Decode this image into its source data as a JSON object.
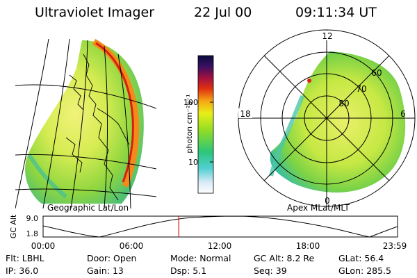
{
  "header": {
    "instrument": "Ultraviolet Imager",
    "date": "22 Jul 00",
    "time": "09:11:34 UT"
  },
  "colorbar": {
    "unit_label": "photon cm⁻²s⁻¹",
    "tick_labels": [
      "100",
      "10"
    ]
  },
  "panels": {
    "left_label": "Geographic Lat/Lon",
    "right_label": "Apex MLat/MLT"
  },
  "polar_plot": {
    "mlt_labels": [
      "12",
      "18",
      "6",
      "0"
    ],
    "mlat_labels": [
      "60",
      "70",
      "80"
    ]
  },
  "altitude_plot": {
    "ylabel": "GC Alt",
    "y_ticks": [
      "9.0",
      "1.8"
    ],
    "x_ticks": [
      "00:00",
      "06:00",
      "12:00",
      "18:00",
      "23:59"
    ],
    "current_time_hours": 9.19,
    "marker_color": "#d01010"
  },
  "info": {
    "row1": [
      {
        "label": "Flt:",
        "value": "LBHL"
      },
      {
        "label": "Door:",
        "value": "Open"
      },
      {
        "label": "Mode:",
        "value": "Normal"
      },
      {
        "label": "GC Alt:",
        "value": "8.2 Re"
      },
      {
        "label": "GLat:",
        "value": "56.4"
      }
    ],
    "row2": [
      {
        "label": "IP:",
        "value": "36.0"
      },
      {
        "label": "Gain:",
        "value": "13"
      },
      {
        "label": "Dsp:",
        "value": "5.1"
      },
      {
        "label": "Seq:",
        "value": "39"
      },
      {
        "label": "GLon:",
        "value": "285.5"
      }
    ]
  }
}
